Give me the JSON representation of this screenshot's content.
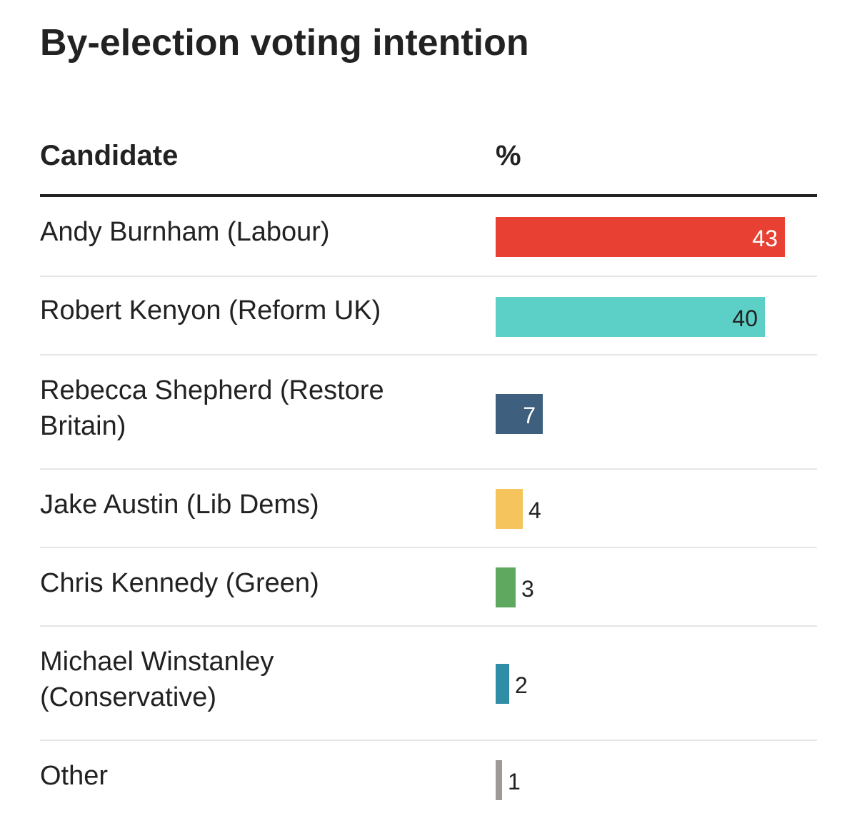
{
  "title": "By-election voting intention",
  "table": {
    "col_candidate": "Candidate",
    "col_pct": "%"
  },
  "chart_data": {
    "type": "bar",
    "orientation": "horizontal",
    "title": "By-election voting intention",
    "xlabel": "%",
    "ylabel": "Candidate",
    "categories": [
      "Andy Burnham (Labour)",
      "Robert Kenyon (Reform UK)",
      "Rebecca Shepherd (Restore Britain)",
      "Jake Austin (Lib Dems)",
      "Chris Kennedy (Green)",
      "Michael Winstanley (Conservative)",
      "Other"
    ],
    "values": [
      43,
      40,
      7,
      4,
      3,
      2,
      1
    ],
    "colors": [
      "#e84133",
      "#5ccfc7",
      "#3e607e",
      "#f5c45c",
      "#5ea85f",
      "#2f8da6",
      "#a09a97"
    ],
    "label_colors": [
      "#ffffff",
      "#222222",
      "#ffffff",
      "#222222",
      "#222222",
      "#222222",
      "#222222"
    ],
    "xlim": [
      0,
      43
    ],
    "grid": false,
    "legend": "none"
  }
}
